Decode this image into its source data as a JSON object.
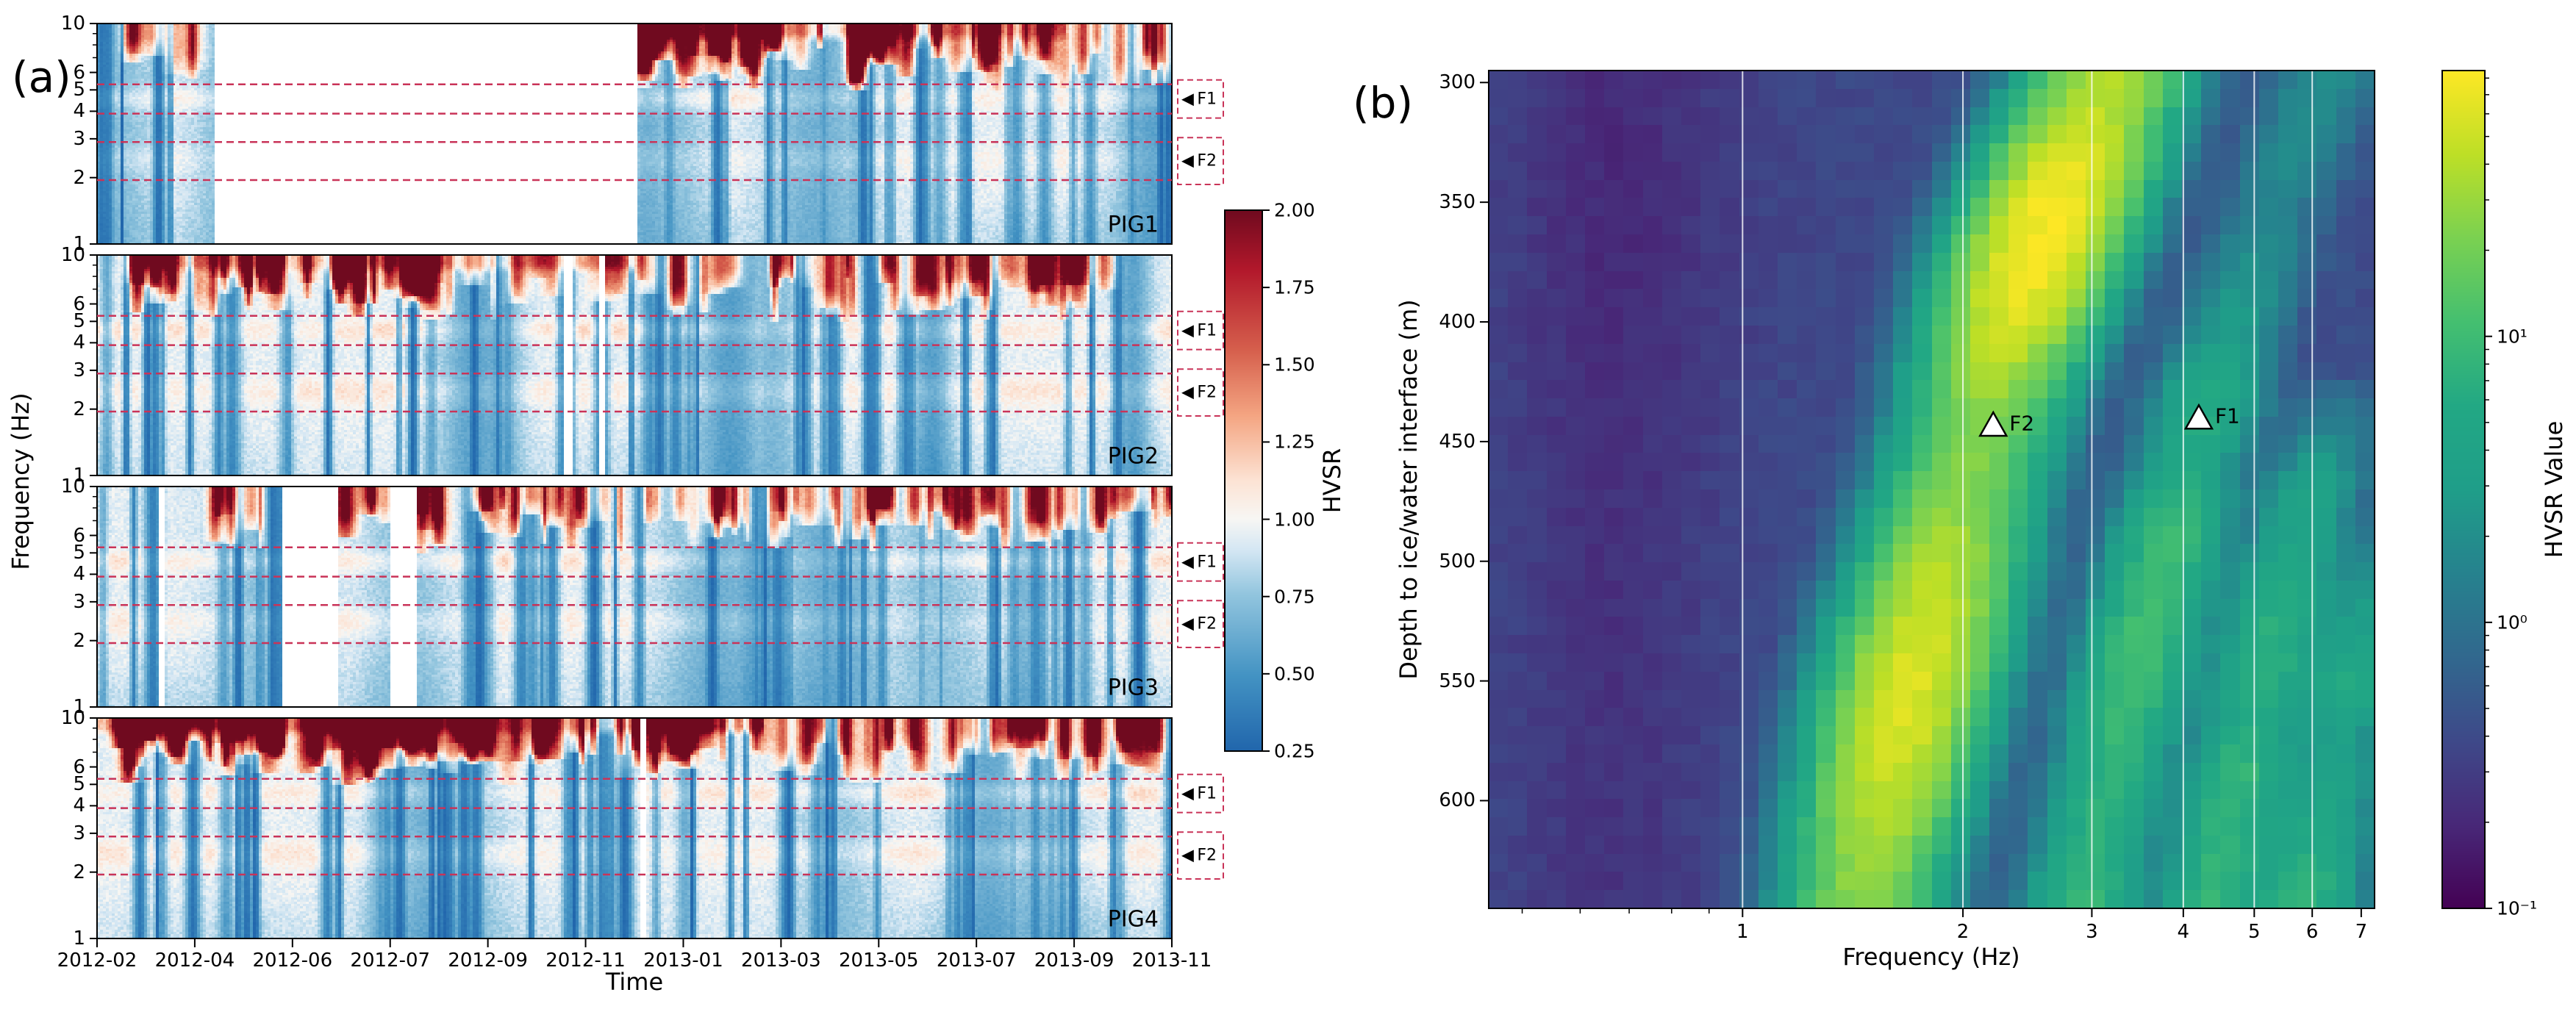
{
  "figure": {
    "background": "#ffffff"
  },
  "chart_data": [
    {
      "id": "panel_a",
      "panel_label": "(a)",
      "type": "heatmap",
      "description": "HVSR spectrograms over time for four stations PIG1-PIG4, log frequency axis 1-10 Hz; white regions are data gaps; dashed crimson lines mark resonance bands F1 and F2; vertical blue streaks are low-HVSR intervals and red patches at high frequency are high-HVSR intervals.",
      "xlabel": "Time",
      "ylabel": "Frequency (Hz)",
      "x_tick_labels": [
        "2012-02",
        "2012-04",
        "2012-06",
        "2012-07",
        "2012-09",
        "2012-11",
        "2013-01",
        "2013-03",
        "2013-05",
        "2013-07",
        "2013-09",
        "2013-11"
      ],
      "y_scale": "log",
      "y_range": [
        1,
        10
      ],
      "y_tick_labels": [
        "10",
        "6",
        "5",
        "4",
        "3",
        "2",
        "1"
      ],
      "y_minor_ticks": [
        9,
        8,
        7
      ],
      "subplots": [
        {
          "station": "PIG1",
          "seed": 11,
          "data_gaps_frac": [
            [
              0.107,
              0.504
            ]
          ],
          "top_activity": [
            [
              0.0,
              0.107,
              0.3
            ],
            [
              0.504,
              0.75,
              0.95
            ],
            [
              0.75,
              1.0,
              0.6
            ]
          ],
          "top_line": [
            0.504,
            0.9,
            0.45
          ]
        },
        {
          "station": "PIG2",
          "seed": 22,
          "data_gaps_frac": [
            [
              0.435,
              0.443
            ],
            [
              0.466,
              0.472
            ]
          ],
          "top_activity": [
            [
              0.03,
              0.33,
              0.75
            ],
            [
              0.33,
              0.62,
              0.3
            ],
            [
              0.62,
              0.95,
              0.55
            ]
          ],
          "top_line": [
            0.04,
            0.5,
            0.3
          ]
        },
        {
          "station": "PIG3",
          "seed": 33,
          "data_gaps_frac": [
            [
              0.055,
              0.062
            ],
            [
              0.171,
              0.224
            ],
            [
              0.273,
              0.298
            ]
          ],
          "top_activity": [
            [
              0.1,
              0.17,
              0.5
            ],
            [
              0.224,
              0.273,
              0.6
            ],
            [
              0.298,
              0.6,
              0.55
            ],
            [
              0.6,
              1.0,
              0.65
            ]
          ],
          "top_line": null
        },
        {
          "station": "PIG4",
          "seed": 44,
          "data_gaps_frac": [
            [
              0.505,
              0.511
            ]
          ],
          "top_activity": [
            [
              0.0,
              0.55,
              0.9
            ],
            [
              0.55,
              0.8,
              0.5
            ],
            [
              0.8,
              1.0,
              0.65
            ]
          ],
          "top_line": [
            0.0,
            0.62,
            0.55
          ]
        }
      ],
      "marker_bands": [
        {
          "label": "F1",
          "freqs_hz": [
            3.9,
            5.3
          ],
          "pointer": "◀"
        },
        {
          "label": "F2",
          "freqs_hz": [
            1.95,
            2.9
          ],
          "pointer": "◀"
        }
      ],
      "band_line_color": "#c93358",
      "colorbar": {
        "label": "HVSR",
        "range": [
          0.25,
          2.0
        ],
        "tick_labels": [
          "2.00",
          "1.75",
          "1.50",
          "1.25",
          "1.00",
          "0.75",
          "0.50",
          "0.25"
        ],
        "tick_values": [
          2.0,
          1.75,
          1.5,
          1.25,
          1.0,
          0.75,
          0.5,
          0.25
        ],
        "colormap": "RdBu_r"
      }
    },
    {
      "id": "panel_b",
      "panel_label": "(b)",
      "type": "heatmap",
      "description": "Modeled HVSR value versus frequency (log axis) and depth to ice/water interface; bright diagonal bands follow resonance harmonics with frequency x depth approximately constant; white triangles mark observed peaks F2 (2.2 Hz, 443 m) and F1 (4.2 Hz, 440 m).",
      "xlabel": "Frequency (Hz)",
      "ylabel": "Depth to ice/water interface (m)",
      "x_scale": "log",
      "x_range": [
        0.45,
        7.3
      ],
      "x_tick_labels": [
        "1",
        "2",
        "3",
        "4",
        "5",
        "6",
        "7"
      ],
      "x_tick_values": [
        1,
        2,
        3,
        4,
        5,
        6,
        7
      ],
      "x_minor_ticks": [
        0.5,
        0.6,
        0.7,
        0.8,
        0.9
      ],
      "y_range": [
        295,
        645
      ],
      "y_tick_labels": [
        "300",
        "350",
        "400",
        "450",
        "500",
        "550",
        "600"
      ],
      "y_tick_values": [
        300,
        350,
        400,
        450,
        500,
        550,
        600
      ],
      "grid_lines_x": [
        1,
        2,
        3,
        4,
        5,
        6
      ],
      "resonance": {
        "fd_products_hz_m": [
          936,
          1872,
          2808,
          3744
        ],
        "amplitudes": [
          65,
          11,
          9,
          8
        ],
        "sigma_log10f": 0.055
      },
      "markers": [
        {
          "label": "F2",
          "freq_hz": 2.2,
          "depth_m": 443
        },
        {
          "label": "F1",
          "freq_hz": 4.2,
          "depth_m": 440
        }
      ],
      "colorbar": {
        "label": "HVSR Value",
        "scale": "log",
        "range": [
          0.1,
          85
        ],
        "tick_labels": [
          "10¹",
          "10⁰",
          "10⁻¹"
        ],
        "tick_values": [
          10,
          1,
          0.1
        ],
        "colormap": "viridis"
      }
    }
  ],
  "style": {
    "colormaps": {
      "rdbu_r": [
        [
          0,
          "#2166ac"
        ],
        [
          0.14,
          "#4393c3"
        ],
        [
          0.29,
          "#92c5de"
        ],
        [
          0.37,
          "#d3e6f3"
        ],
        [
          0.43,
          "#f7f6f3"
        ],
        [
          0.5,
          "#fce3d4"
        ],
        [
          0.62,
          "#f4a582"
        ],
        [
          0.74,
          "#d6604d"
        ],
        [
          0.89,
          "#b2182b"
        ],
        [
          1,
          "#700a1f"
        ]
      ],
      "viridis": [
        [
          0,
          "#440154"
        ],
        [
          0.1,
          "#482878"
        ],
        [
          0.2,
          "#3e4989"
        ],
        [
          0.3,
          "#31688e"
        ],
        [
          0.4,
          "#26828e"
        ],
        [
          0.5,
          "#1f9e89"
        ],
        [
          0.6,
          "#22a884"
        ],
        [
          0.7,
          "#44bf70"
        ],
        [
          0.8,
          "#7ad151"
        ],
        [
          0.9,
          "#bddf26"
        ],
        [
          1,
          "#fde725"
        ]
      ]
    },
    "marker_face": "#ffffff",
    "marker_edge": "#000000",
    "grid_line_color": "rgba(255,255,255,0.8)"
  }
}
